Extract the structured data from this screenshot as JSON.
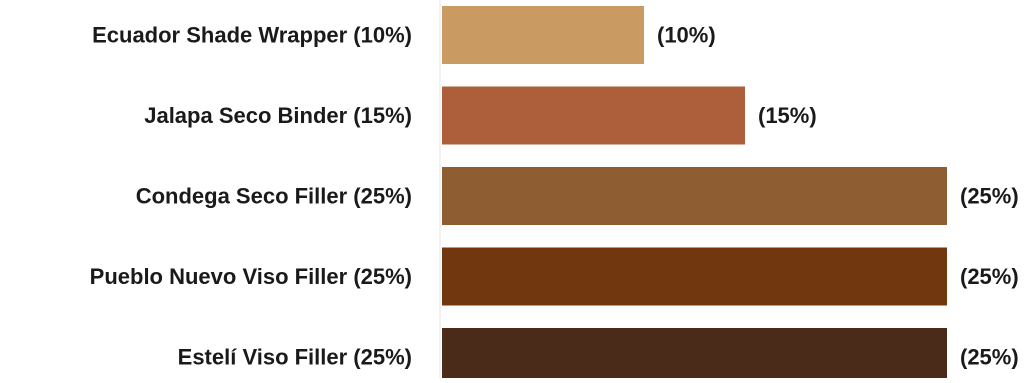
{
  "chart_data": {
    "type": "bar",
    "orientation": "horizontal",
    "categories": [
      "Ecuador Shade Wrapper (10%)",
      "Jalapa Seco Binder (15%)",
      "Condega Seco Filler (25%)",
      "Pueblo Nuevo Viso Filler (25%)",
      "Estelí Viso Filler (25%)"
    ],
    "values": [
      10,
      15,
      25,
      25,
      25
    ],
    "value_labels": [
      "(10%)",
      "(15%)",
      "(25%)",
      "(25%)",
      "(25%)"
    ],
    "colors": [
      "#c99a62",
      "#ac5f3a",
      "#8e5d32",
      "#71380f",
      "#4a2a18"
    ],
    "xlim": [
      0,
      25
    ],
    "grid": false,
    "title": "",
    "xlabel": "",
    "ylabel": ""
  }
}
